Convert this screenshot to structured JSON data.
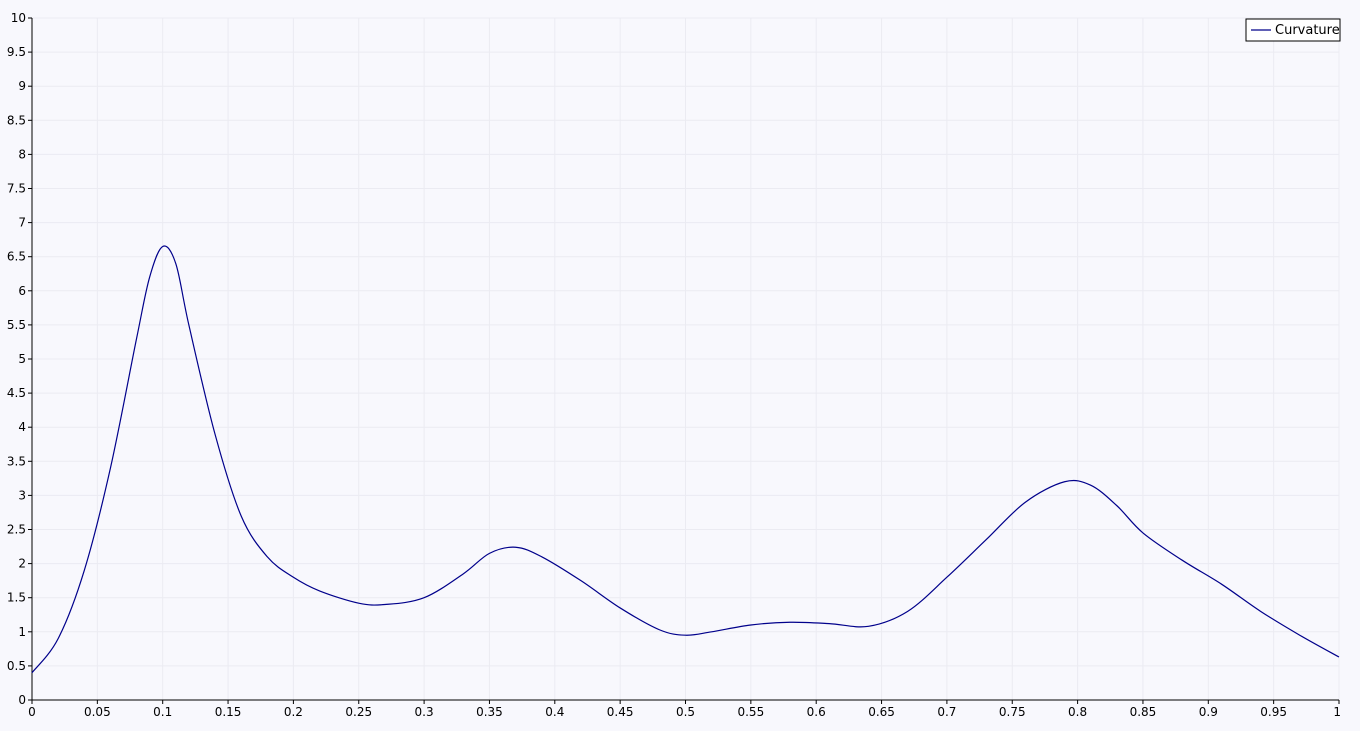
{
  "chart_data": {
    "type": "line",
    "title": "",
    "xlabel": "",
    "ylabel": "",
    "xlim": [
      0,
      1
    ],
    "ylim": [
      0,
      10
    ],
    "x_ticks": [
      "0",
      "0.05",
      "0.1",
      "0.15",
      "0.2",
      "0.25",
      "0.3",
      "0.35",
      "0.4",
      "0.45",
      "0.5",
      "0.55",
      "0.6",
      "0.65",
      "0.7",
      "0.75",
      "0.8",
      "0.85",
      "0.9",
      "0.95",
      "1"
    ],
    "y_ticks": [
      "0",
      "0.5",
      "1",
      "1.5",
      "2",
      "2.5",
      "3",
      "3.5",
      "4",
      "4.5",
      "5",
      "5.5",
      "6",
      "6.5",
      "7",
      "7.5",
      "8",
      "8.5",
      "9",
      "9.5",
      "10"
    ],
    "grid": true,
    "legend_position": "top-right",
    "colors": {
      "background": "#f8f8fd",
      "grid": "#ebebf2",
      "axis": "#000000",
      "series": "#00008b"
    },
    "series": [
      {
        "name": "Curvature",
        "x": [
          0,
          0.02,
          0.04,
          0.06,
          0.08,
          0.09,
          0.1,
          0.11,
          0.12,
          0.14,
          0.16,
          0.18,
          0.2,
          0.22,
          0.25,
          0.27,
          0.3,
          0.33,
          0.35,
          0.37,
          0.39,
          0.42,
          0.45,
          0.48,
          0.5,
          0.52,
          0.55,
          0.58,
          0.61,
          0.64,
          0.67,
          0.7,
          0.73,
          0.76,
          0.79,
          0.81,
          0.83,
          0.85,
          0.88,
          0.91,
          0.94,
          0.97,
          1
        ],
        "values": [
          0.4,
          0.9,
          1.9,
          3.4,
          5.3,
          6.2,
          6.65,
          6.4,
          5.5,
          3.9,
          2.7,
          2.1,
          1.8,
          1.6,
          1.42,
          1.4,
          1.5,
          1.85,
          2.15,
          2.24,
          2.1,
          1.75,
          1.35,
          1.03,
          0.95,
          1.0,
          1.1,
          1.14,
          1.12,
          1.08,
          1.3,
          1.8,
          2.35,
          2.9,
          3.2,
          3.15,
          2.85,
          2.45,
          2.05,
          1.7,
          1.3,
          0.95,
          0.63
        ]
      }
    ]
  }
}
